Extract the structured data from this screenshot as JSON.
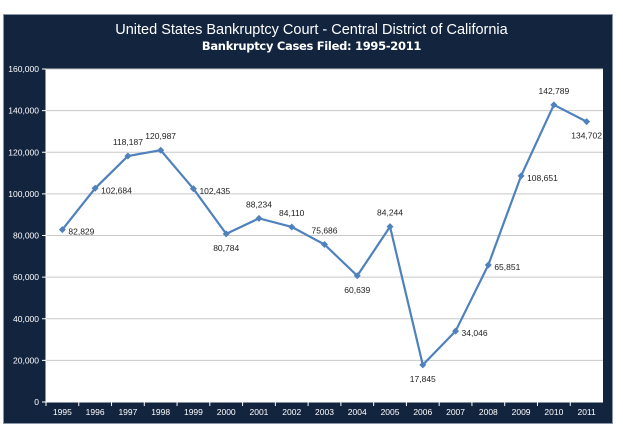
{
  "chart_data": {
    "type": "line",
    "title": "United States Bankruptcy Court - Central District of California",
    "subtitle": "Bankruptcy Cases Filed:  1995-2011",
    "xlabel": "",
    "ylabel": "",
    "categories": [
      "1995",
      "1996",
      "1997",
      "1998",
      "1999",
      "2000",
      "2001",
      "2002",
      "2003",
      "2004",
      "2005",
      "2006",
      "2007",
      "2008",
      "2009",
      "2010",
      "2011"
    ],
    "values": [
      82829,
      102684,
      118187,
      120987,
      102435,
      80784,
      88234,
      84110,
      75686,
      60639,
      84244,
      17845,
      34046,
      65851,
      108651,
      142789,
      134702
    ],
    "data_labels": [
      "82,829",
      "102,684",
      "118,187",
      "120,987",
      "102,435",
      "80,784",
      "88,234",
      "84,110",
      "75,686",
      "60,639",
      "84,244",
      "17,845",
      "34,046",
      "65,851",
      "108,651",
      "142,789",
      "134,702"
    ],
    "label_placement": [
      "right",
      "right",
      "above",
      "above",
      "right",
      "below",
      "above",
      "above",
      "above",
      "below",
      "above",
      "below",
      "right",
      "right",
      "right",
      "above",
      "below"
    ],
    "yticks": [
      "0",
      "20,000",
      "40,000",
      "60,000",
      "80,000",
      "100,000",
      "120,000",
      "140,000",
      "160,000"
    ],
    "ylim": [
      0,
      160000
    ],
    "grid": true,
    "legend": "none",
    "colors": {
      "line": "#4f81bd",
      "background": "#13243f",
      "plot": "#ffffff",
      "grid": "#c8c8c8"
    }
  }
}
